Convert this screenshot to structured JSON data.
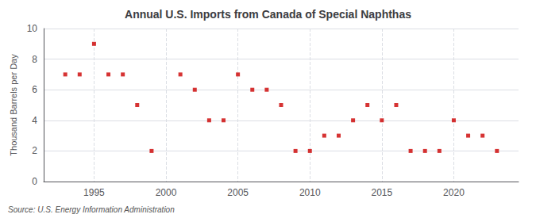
{
  "chart_data": {
    "type": "scatter",
    "title": "Annual U.S. Imports from Canada of Special Naphthas",
    "ylabel": "Thousand Barrels per Day",
    "annotation": "Source: U.S. Energy Information Administration",
    "x": [
      1993,
      1994,
      1995,
      1996,
      1997,
      1998,
      1999,
      2001,
      2002,
      2003,
      2004,
      2005,
      2006,
      2007,
      2008,
      2009,
      2010,
      2011,
      2012,
      2013,
      2014,
      2015,
      2016,
      2017,
      2018,
      2019,
      2020,
      2021,
      2022,
      2023
    ],
    "values": [
      7,
      7,
      9,
      7,
      7,
      5,
      2,
      7,
      6,
      4,
      4,
      7,
      6,
      6,
      5,
      2,
      2,
      3,
      3,
      4,
      5,
      4,
      5,
      2,
      2,
      2,
      4,
      3,
      3,
      2
    ],
    "color": "#cc0000",
    "marker": "square",
    "xlim": [
      1991.5,
      2024.5
    ],
    "xticks": [
      1995,
      2000,
      2005,
      2010,
      2015,
      2020
    ],
    "ylim": [
      0,
      10
    ],
    "yticks": [
      0,
      2,
      4,
      6,
      8,
      10
    ],
    "grid": true
  }
}
